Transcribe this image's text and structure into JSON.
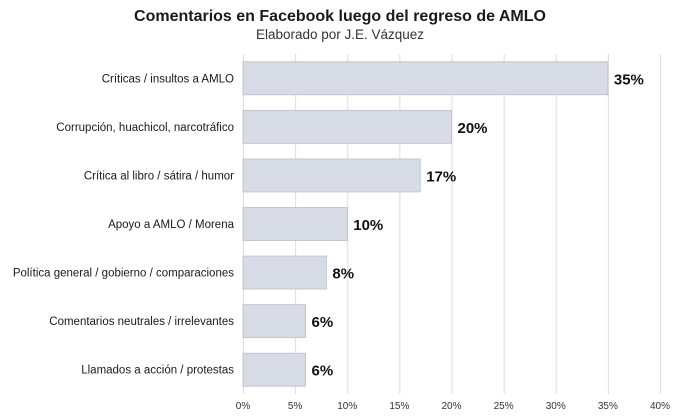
{
  "chart_data": {
    "type": "bar",
    "orientation": "horizontal",
    "title": "Comentarios en Facebook luego del regreso de AMLO",
    "subtitle": "Elaborado por J.E. Vázquez",
    "categories": [
      "Críticas / insultos a AMLO",
      "Corrupción, huachicol, narcotráfico",
      "Crítica al libro / sátira / humor",
      "Apoyo a AMLO / Morena",
      "Política general / gobierno / comparaciones",
      "Comentarios neutrales / irrelevantes",
      "Llamados a acción / protestas"
    ],
    "values": [
      35,
      20,
      17,
      10,
      8,
      6,
      6
    ],
    "value_labels": [
      "35%",
      "20%",
      "17%",
      "10%",
      "8%",
      "6%",
      "6%"
    ],
    "xlim": [
      0,
      40
    ],
    "xticks": [
      0,
      5,
      10,
      15,
      20,
      25,
      30,
      35,
      40
    ],
    "xtick_labels": [
      "0%",
      "5%",
      "10%",
      "15%",
      "20%",
      "25%",
      "30%",
      "35%",
      "40%"
    ],
    "xlabel": "",
    "ylabel": "",
    "grid": true,
    "bar_color": "#d6dbe6",
    "bar_edge_color": "#b9c0cf",
    "grid_color": "#dddddd"
  }
}
